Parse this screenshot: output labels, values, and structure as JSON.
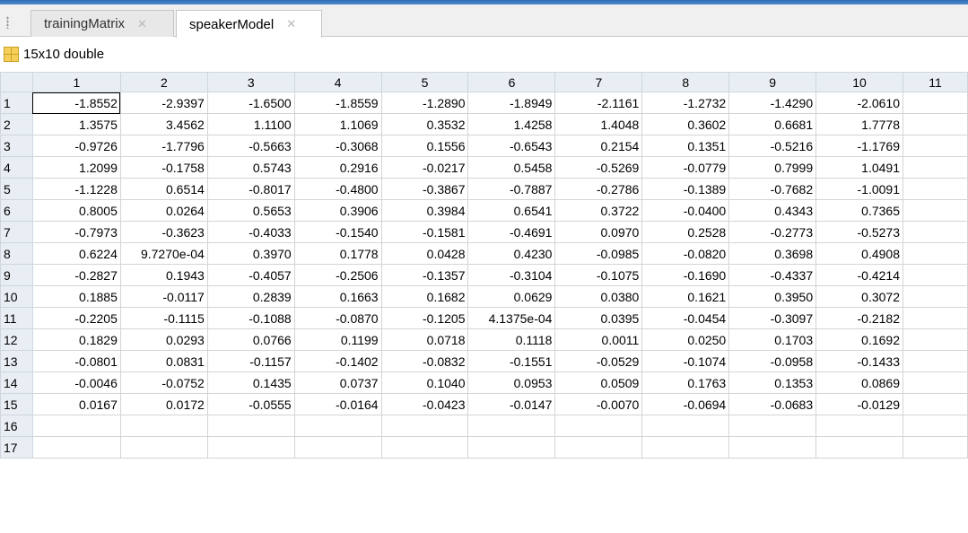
{
  "tabs": [
    {
      "label": "trainingMatrix",
      "active": false
    },
    {
      "label": "speakerModel",
      "active": true
    }
  ],
  "variable": {
    "size_label": "15x10 double"
  },
  "grid": {
    "columns": [
      "1",
      "2",
      "3",
      "4",
      "5",
      "6",
      "7",
      "8",
      "9",
      "10",
      "11"
    ],
    "row_labels": [
      "1",
      "2",
      "3",
      "4",
      "5",
      "6",
      "7",
      "8",
      "9",
      "10",
      "11",
      "12",
      "13",
      "14",
      "15",
      "16",
      "17"
    ],
    "rows": [
      [
        "-1.8552",
        "-2.9397",
        "-1.6500",
        "-1.8559",
        "-1.2890",
        "-1.8949",
        "-2.1161",
        "-1.2732",
        "-1.4290",
        "-2.0610",
        ""
      ],
      [
        "1.3575",
        "3.4562",
        "1.1100",
        "1.1069",
        "0.3532",
        "1.4258",
        "1.4048",
        "0.3602",
        "0.6681",
        "1.7778",
        ""
      ],
      [
        "-0.9726",
        "-1.7796",
        "-0.5663",
        "-0.3068",
        "0.1556",
        "-0.6543",
        "0.2154",
        "0.1351",
        "-0.5216",
        "-1.1769",
        ""
      ],
      [
        "1.2099",
        "-0.1758",
        "0.5743",
        "0.2916",
        "-0.0217",
        "0.5458",
        "-0.5269",
        "-0.0779",
        "0.7999",
        "1.0491",
        ""
      ],
      [
        "-1.1228",
        "0.6514",
        "-0.8017",
        "-0.4800",
        "-0.3867",
        "-0.7887",
        "-0.2786",
        "-0.1389",
        "-0.7682",
        "-1.0091",
        ""
      ],
      [
        "0.8005",
        "0.0264",
        "0.5653",
        "0.3906",
        "0.3984",
        "0.6541",
        "0.3722",
        "-0.0400",
        "0.4343",
        "0.7365",
        ""
      ],
      [
        "-0.7973",
        "-0.3623",
        "-0.4033",
        "-0.1540",
        "-0.1581",
        "-0.4691",
        "0.0970",
        "0.2528",
        "-0.2773",
        "-0.5273",
        ""
      ],
      [
        "0.6224",
        "9.7270e-04",
        "0.3970",
        "0.1778",
        "0.0428",
        "0.4230",
        "-0.0985",
        "-0.0820",
        "0.3698",
        "0.4908",
        ""
      ],
      [
        "-0.2827",
        "0.1943",
        "-0.4057",
        "-0.2506",
        "-0.1357",
        "-0.3104",
        "-0.1075",
        "-0.1690",
        "-0.4337",
        "-0.4214",
        ""
      ],
      [
        "0.1885",
        "-0.0117",
        "0.2839",
        "0.1663",
        "0.1682",
        "0.0629",
        "0.0380",
        "0.1621",
        "0.3950",
        "0.3072",
        ""
      ],
      [
        "-0.2205",
        "-0.1115",
        "-0.1088",
        "-0.0870",
        "-0.1205",
        "4.1375e-04",
        "0.0395",
        "-0.0454",
        "-0.3097",
        "-0.2182",
        ""
      ],
      [
        "0.1829",
        "0.0293",
        "0.0766",
        "0.1199",
        "0.0718",
        "0.1118",
        "0.0011",
        "0.0250",
        "0.1703",
        "0.1692",
        ""
      ],
      [
        "-0.0801",
        "0.0831",
        "-0.1157",
        "-0.1402",
        "-0.0832",
        "-0.1551",
        "-0.0529",
        "-0.1074",
        "-0.0958",
        "-0.1433",
        ""
      ],
      [
        "-0.0046",
        "-0.0752",
        "0.1435",
        "0.0737",
        "0.1040",
        "0.0953",
        "0.0509",
        "0.1763",
        "0.1353",
        "0.0869",
        ""
      ],
      [
        "0.0167",
        "0.0172",
        "-0.0555",
        "-0.0164",
        "-0.0423",
        "-0.0147",
        "-0.0070",
        "-0.0694",
        "-0.0683",
        "-0.0129",
        ""
      ],
      [
        "",
        "",
        "",
        "",
        "",
        "",
        "",
        "",
        "",
        "",
        ""
      ],
      [
        "",
        "",
        "",
        "",
        "",
        "",
        "",
        "",
        "",
        "",
        ""
      ]
    ]
  }
}
